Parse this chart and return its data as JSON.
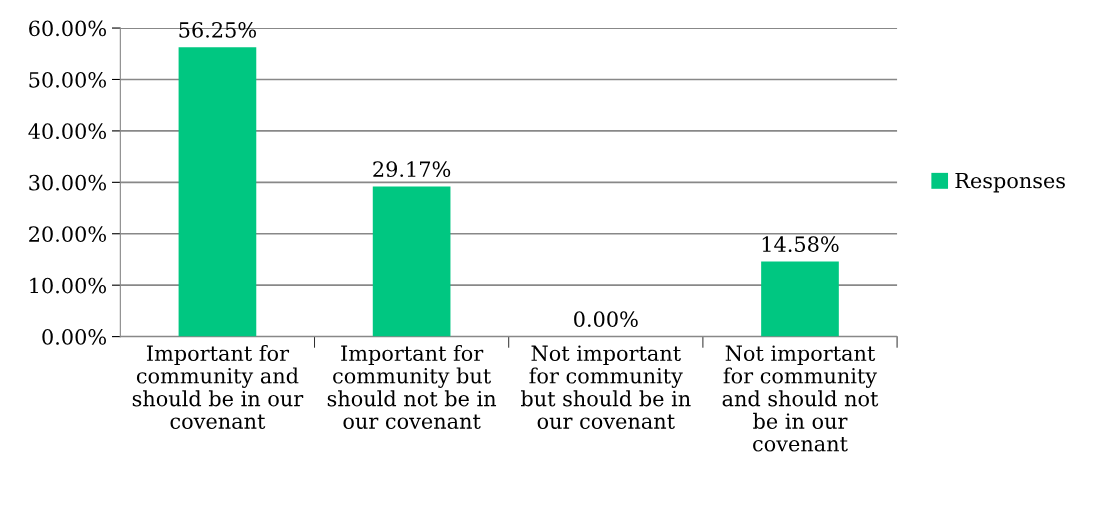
{
  "chart_data": {
    "type": "bar",
    "categories": [
      "Important for\ncommunity and\nshould be in our\ncovenant",
      "Important for\ncommunity but\nshould not be in\nour covenant",
      "Not important\nfor community\nbut should be in\nour covenant",
      "Not important\nfor community\nand should not\nbe in our\ncovenant"
    ],
    "series": [
      {
        "name": "Responses",
        "color": "#00c781",
        "values": [
          56.25,
          29.17,
          0.0,
          14.58
        ],
        "value_labels": [
          "56.25%",
          "29.17%",
          "0.00%",
          "14.58%"
        ]
      }
    ],
    "ylim": [
      0,
      60
    ],
    "yticks": [
      {
        "value": 0,
        "label": "0.00%"
      },
      {
        "value": 10,
        "label": "10.00%"
      },
      {
        "value": 20,
        "label": "20.00%"
      },
      {
        "value": 30,
        "label": "30.00%"
      },
      {
        "value": 40,
        "label": "40.00%"
      },
      {
        "value": 50,
        "label": "50.00%"
      },
      {
        "value": 60,
        "label": "60.00%"
      }
    ],
    "grid": "y",
    "legend": "right"
  }
}
